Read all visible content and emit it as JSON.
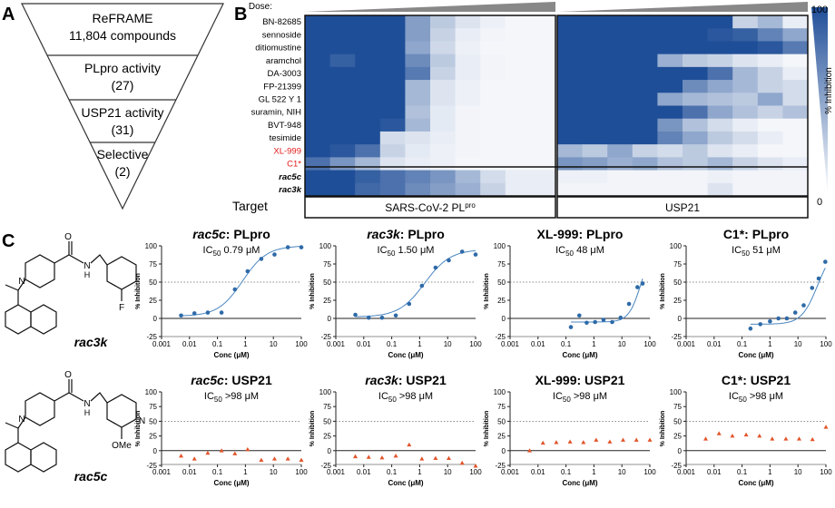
{
  "panels": {
    "a": "A",
    "b": "B",
    "c": "C"
  },
  "funnel": {
    "tiers": [
      {
        "line1": "ReFRAME",
        "line2": "11,804 compounds"
      },
      {
        "line1": "PLpro activity",
        "line2": "(27)"
      },
      {
        "line1": "USP21 activity",
        "line2": "(31)"
      },
      {
        "line1": "Selective",
        "line2": "(2)"
      }
    ]
  },
  "heatmap": {
    "dose_label": "Dose:",
    "compounds": [
      {
        "name": "BN-82685",
        "style": "normal"
      },
      {
        "name": "sennoside",
        "style": "normal"
      },
      {
        "name": "ditiomustine",
        "style": "normal"
      },
      {
        "name": "aramchol",
        "style": "normal"
      },
      {
        "name": "DA-3003",
        "style": "normal"
      },
      {
        "name": "FP-21399",
        "style": "normal"
      },
      {
        "name": "GL 522 Y 1",
        "style": "normal"
      },
      {
        "name": "suramin, NIH",
        "style": "normal"
      },
      {
        "name": "BVT-948",
        "style": "normal"
      },
      {
        "name": "tesimide",
        "style": "normal"
      },
      {
        "name": "XL-999",
        "style": "red"
      },
      {
        "name": "C1*",
        "style": "red"
      },
      {
        "name": "rac5c",
        "style": "bolditalic"
      },
      {
        "name": "rac3k",
        "style": "bolditalic"
      }
    ],
    "target_label": "Target",
    "targets": [
      {
        "name": "SARS-CoV-2 PL",
        "sup": "pro"
      },
      {
        "name": "USP21",
        "sup": ""
      }
    ],
    "colorbar": {
      "max": "100",
      "min": "0",
      "label": "% Inhibition",
      "high_color": "#1f4e98",
      "low_color": "#ffffff"
    },
    "plpro": [
      [
        100,
        100,
        100,
        100,
        55,
        30,
        15,
        8,
        5,
        5
      ],
      [
        100,
        100,
        100,
        100,
        55,
        25,
        10,
        6,
        5,
        5
      ],
      [
        100,
        100,
        100,
        100,
        50,
        22,
        8,
        5,
        5,
        5
      ],
      [
        100,
        90,
        100,
        100,
        65,
        30,
        10,
        6,
        5,
        5
      ],
      [
        100,
        100,
        100,
        100,
        75,
        25,
        10,
        6,
        5,
        5
      ],
      [
        100,
        100,
        100,
        100,
        40,
        15,
        8,
        5,
        5,
        5
      ],
      [
        100,
        100,
        100,
        100,
        40,
        15,
        8,
        5,
        5,
        5
      ],
      [
        100,
        100,
        100,
        100,
        35,
        12,
        6,
        5,
        5,
        5
      ],
      [
        100,
        100,
        100,
        95,
        40,
        12,
        6,
        5,
        5,
        5
      ],
      [
        100,
        100,
        100,
        20,
        15,
        10,
        6,
        5,
        5,
        5
      ],
      [
        100,
        95,
        80,
        25,
        12,
        8,
        6,
        5,
        5,
        5
      ],
      [
        80,
        60,
        40,
        15,
        10,
        8,
        5,
        5,
        5,
        5
      ],
      [
        100,
        100,
        90,
        80,
        70,
        60,
        40,
        20,
        10,
        10
      ],
      [
        100,
        100,
        85,
        80,
        65,
        55,
        45,
        25,
        10,
        10
      ]
    ],
    "usp21": [
      [
        100,
        100,
        100,
        100,
        100,
        100,
        100,
        25,
        40,
        10
      ],
      [
        100,
        100,
        100,
        100,
        100,
        100,
        95,
        90,
        70,
        50
      ],
      [
        100,
        100,
        100,
        100,
        100,
        100,
        100,
        100,
        95,
        75
      ],
      [
        100,
        100,
        100,
        100,
        45,
        30,
        25,
        15,
        10,
        5
      ],
      [
        100,
        100,
        100,
        100,
        100,
        100,
        80,
        40,
        25,
        10
      ],
      [
        100,
        100,
        100,
        100,
        100,
        65,
        50,
        40,
        25,
        20
      ],
      [
        100,
        100,
        100,
        100,
        50,
        40,
        35,
        30,
        50,
        20
      ],
      [
        100,
        100,
        100,
        100,
        100,
        80,
        50,
        35,
        25,
        35
      ],
      [
        100,
        100,
        100,
        100,
        60,
        35,
        20,
        10,
        5,
        5
      ],
      [
        100,
        100,
        100,
        100,
        70,
        50,
        30,
        20,
        10,
        5
      ],
      [
        40,
        30,
        50,
        25,
        20,
        30,
        15,
        10,
        5,
        5
      ],
      [
        60,
        55,
        45,
        50,
        35,
        30,
        40,
        25,
        15,
        10
      ],
      [
        8,
        8,
        6,
        6,
        6,
        6,
        8,
        6,
        6,
        6
      ],
      [
        6,
        6,
        6,
        6,
        6,
        6,
        15,
        6,
        6,
        6
      ]
    ]
  },
  "structures": [
    {
      "name": "rac3k"
    },
    {
      "name": "rac5c",
      "sub": "OMe"
    }
  ],
  "curve_common": {
    "xlabel": "Conc (μM)",
    "ylabel": "% Inhibition",
    "xticks": [
      "0.001",
      "0.01",
      "0.1",
      "1",
      "10",
      "100"
    ],
    "yticks_top": [
      "0",
      "25",
      "50",
      "75",
      "100"
    ],
    "yticks_bottom": [
      "-25",
      "0",
      "25",
      "50",
      "75",
      "100"
    ]
  },
  "curves": [
    {
      "cpd": "rac5c",
      "cpd_italic": true,
      "target": ": PLpro",
      "ic50": "0.79 μM",
      "row": 0,
      "fit": {
        "ic50": 0.79,
        "hill": 1.0,
        "bottom": 3,
        "top": 100
      },
      "points": [
        [
          0.005,
          4
        ],
        [
          0.015,
          7
        ],
        [
          0.045,
          8
        ],
        [
          0.14,
          8
        ],
        [
          0.42,
          40
        ],
        [
          1.2,
          65
        ],
        [
          3.7,
          82
        ],
        [
          11,
          88
        ],
        [
          33,
          98
        ],
        [
          100,
          98
        ]
      ]
    },
    {
      "cpd": "rac3k",
      "cpd_italic": true,
      "target": ": PLpro",
      "ic50": "1.50 μM",
      "row": 0,
      "fit": {
        "ic50": 1.5,
        "hill": 0.95,
        "bottom": 2,
        "top": 95
      },
      "points": [
        [
          0.005,
          5
        ],
        [
          0.015,
          1
        ],
        [
          0.045,
          1
        ],
        [
          0.14,
          4
        ],
        [
          0.42,
          20
        ],
        [
          1.2,
          45
        ],
        [
          3.7,
          70
        ],
        [
          11,
          80
        ],
        [
          33,
          92
        ],
        [
          100,
          88
        ]
      ]
    },
    {
      "cpd": "XL-999",
      "cpd_italic": false,
      "target": ": PLpro",
      "ic50": "48 μM",
      "row": 0,
      "fit": {
        "ic50": 48,
        "hill": 2.0,
        "bottom": -5,
        "top": 100
      },
      "points": [
        [
          0.15,
          -12
        ],
        [
          0.3,
          4
        ],
        [
          0.55,
          -6
        ],
        [
          1.1,
          -5
        ],
        [
          2.2,
          -2
        ],
        [
          4.5,
          -5
        ],
        [
          9,
          1
        ],
        [
          18,
          20
        ],
        [
          36,
          43
        ],
        [
          55,
          48
        ]
      ]
    },
    {
      "cpd": "C1*",
      "cpd_italic": false,
      "target": ": PLpro",
      "ic50": "51 μM",
      "row": 0,
      "fit": {
        "ic50": 51,
        "hill": 1.5,
        "bottom": -8,
        "top": 100
      },
      "points": [
        [
          0.2,
          -14
        ],
        [
          0.45,
          -8
        ],
        [
          1.0,
          -4
        ],
        [
          2.0,
          0
        ],
        [
          4.0,
          0
        ],
        [
          8,
          8
        ],
        [
          16,
          18
        ],
        [
          32,
          42
        ],
        [
          55,
          55
        ],
        [
          95,
          78
        ]
      ]
    },
    {
      "cpd": "rac5c",
      "cpd_italic": true,
      "target": ": USP21",
      "ic50": ">98 μM",
      "row": 1,
      "points": [
        [
          0.005,
          -9
        ],
        [
          0.015,
          -14
        ],
        [
          0.045,
          -4
        ],
        [
          0.14,
          0
        ],
        [
          0.42,
          -5
        ],
        [
          1.2,
          2
        ],
        [
          3.7,
          -16
        ],
        [
          11,
          -14
        ],
        [
          33,
          -14
        ],
        [
          100,
          -16
        ]
      ]
    },
    {
      "cpd": "rac3k",
      "cpd_italic": true,
      "target": ": USP21",
      "ic50": ">98 μM",
      "row": 1,
      "points": [
        [
          0.005,
          -10
        ],
        [
          0.015,
          -11
        ],
        [
          0.045,
          -12
        ],
        [
          0.14,
          -9
        ],
        [
          0.42,
          10
        ],
        [
          1.2,
          -14
        ],
        [
          3.7,
          -13
        ],
        [
          11,
          -13
        ],
        [
          33,
          -21
        ],
        [
          100,
          -26
        ]
      ]
    },
    {
      "cpd": "XL-999",
      "cpd_italic": false,
      "target": ": USP21",
      "ic50": ">98 μM",
      "row": 1,
      "points": [
        [
          0.005,
          0
        ],
        [
          0.015,
          13
        ],
        [
          0.045,
          14
        ],
        [
          0.14,
          15
        ],
        [
          0.42,
          14
        ],
        [
          1.2,
          18
        ],
        [
          3.7,
          15
        ],
        [
          11,
          18
        ],
        [
          33,
          18
        ],
        [
          100,
          18
        ]
      ]
    },
    {
      "cpd": "C1*",
      "cpd_italic": false,
      "target": ": USP21",
      "ic50": ">98 μM",
      "row": 1,
      "points": [
        [
          0.005,
          20
        ],
        [
          0.015,
          29
        ],
        [
          0.045,
          25
        ],
        [
          0.14,
          27
        ],
        [
          0.42,
          25
        ],
        [
          1.2,
          20
        ],
        [
          3.7,
          20
        ],
        [
          11,
          20
        ],
        [
          33,
          19
        ],
        [
          100,
          40
        ]
      ]
    }
  ],
  "colors": {
    "plpro_marker": "#2e6aa8",
    "plpro_fit": "#4a86c0",
    "usp21_marker": "#e2542a"
  }
}
